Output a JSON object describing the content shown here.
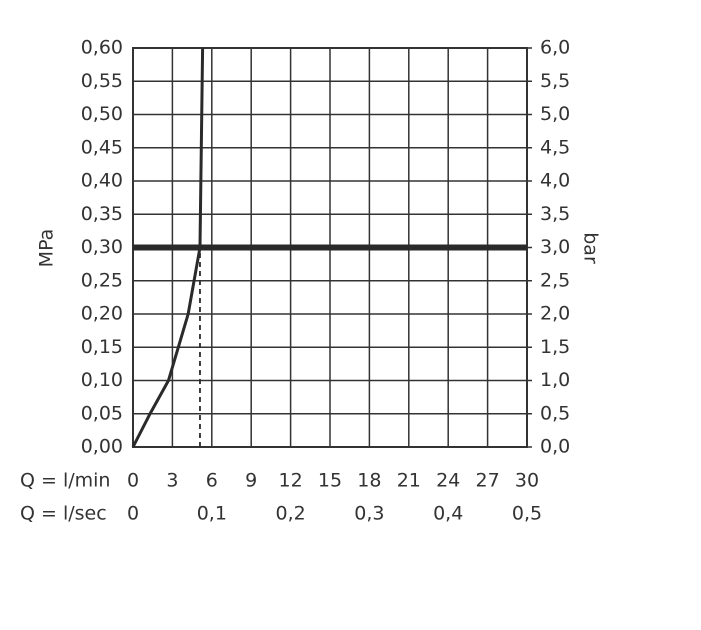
{
  "chart_data": {
    "type": "line",
    "ylabel": "MPa",
    "y2label": "bar",
    "xlabel": "Q = l/min",
    "x2label": "Q = l/sec",
    "x": [
      0,
      1.3,
      2.7,
      4.2,
      5.1,
      5.3
    ],
    "series": [
      {
        "color": "#2a2a2a",
        "values": [
          0,
          0.05,
          0.1,
          0.2,
          0.3,
          0.6
        ]
      }
    ],
    "reference_y": 0.3,
    "reference_x": 5.1,
    "xlim": [
      0,
      30
    ],
    "xticks": [
      0,
      3,
      6,
      9,
      12,
      15,
      18,
      21,
      24,
      27,
      30
    ],
    "x2lim": [
      0,
      0.5
    ],
    "x2ticks": [
      0,
      {
        "value": 0.1,
        "label": "0,1"
      },
      {
        "value": 0.2,
        "label": "0,2"
      },
      {
        "value": 0.3,
        "label": "0,3"
      },
      {
        "value": 0.4,
        "label": "0,4"
      },
      {
        "value": 0.5,
        "label": "0,5"
      }
    ],
    "ylim": [
      0,
      0.6
    ],
    "yticks": [
      {
        "value": 0,
        "label": "0,00"
      },
      {
        "value": 0.05,
        "label": "0,05"
      },
      {
        "value": 0.1,
        "label": "0,10"
      },
      {
        "value": 0.15,
        "label": "0,15"
      },
      {
        "value": 0.2,
        "label": "0,20"
      },
      {
        "value": 0.25,
        "label": "0,25"
      },
      {
        "value": 0.3,
        "label": "0,30"
      },
      {
        "value": 0.35,
        "label": "0,35"
      },
      {
        "value": 0.4,
        "label": "0,40"
      },
      {
        "value": 0.45,
        "label": "0,45"
      },
      {
        "value": 0.5,
        "label": "0,50"
      },
      {
        "value": 0.55,
        "label": "0,55"
      },
      {
        "value": 0.6,
        "label": "0,60"
      }
    ],
    "y2lim": [
      0,
      6
    ],
    "y2ticks": [
      {
        "value": 0,
        "label": "0,0"
      },
      {
        "value": 0.5,
        "label": "0,5"
      },
      {
        "value": 1,
        "label": "1,0"
      },
      {
        "value": 1.5,
        "label": "1,5"
      },
      {
        "value": 2,
        "label": "2,0"
      },
      {
        "value": 2.5,
        "label": "2,5"
      },
      {
        "value": 3,
        "label": "3,0"
      },
      {
        "value": 3.5,
        "label": "3,5"
      },
      {
        "value": 4,
        "label": "4,0"
      },
      {
        "value": 4.5,
        "label": "4,5"
      },
      {
        "value": 5,
        "label": "5,0"
      },
      {
        "value": 5.5,
        "label": "5,5"
      },
      {
        "value": 6,
        "label": "6,0"
      }
    ],
    "grid": true
  }
}
